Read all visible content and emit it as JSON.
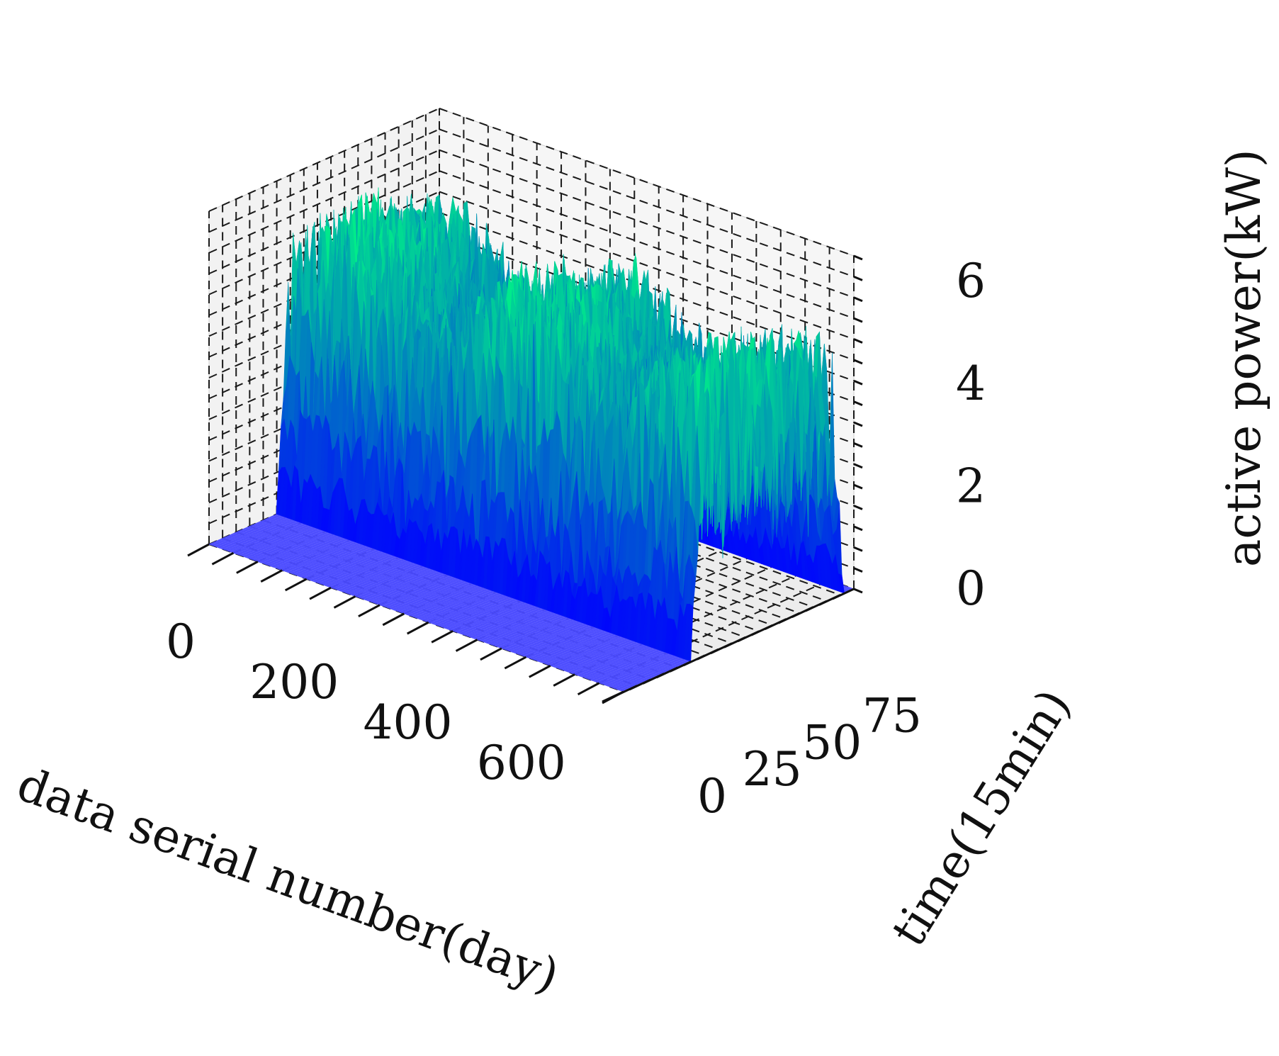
{
  "chart_data": {
    "type": "surface3d",
    "colormap": "winter",
    "base_color": "#4b4bff",
    "x_axis": {
      "label": "data serial number(day)",
      "ticks": [
        0,
        200,
        400,
        600
      ],
      "range": [
        0,
        730
      ]
    },
    "y_axis": {
      "label": "time(15min)",
      "ticks": [
        0,
        25,
        50,
        75
      ],
      "range": [
        0,
        96
      ]
    },
    "z_axis": {
      "label": "active power(kW)",
      "ticks": [
        0,
        2,
        4,
        6
      ],
      "range": [
        0,
        6.5
      ]
    },
    "active_window_time": [
      28,
      92
    ],
    "active_days": [
      0,
      730
    ],
    "peak_kw": 6.2,
    "grid": true
  }
}
